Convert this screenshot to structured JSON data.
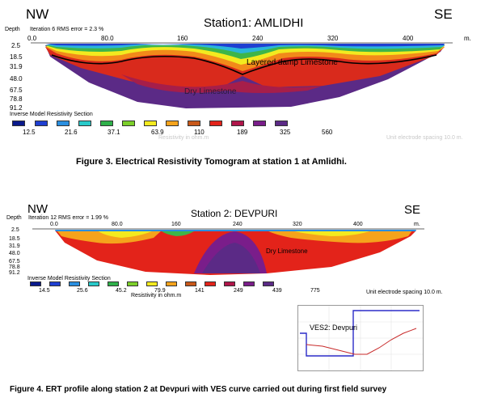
{
  "figure3": {
    "nw": "NW",
    "se": "SE",
    "title": "Station1: AMLIDHI",
    "depth_label": "Depth",
    "iteration": "Iteration 6 RMS error = 2.3 %",
    "x_ticks": [
      "0.0",
      "80.0",
      "160",
      "240",
      "320",
      "400"
    ],
    "unit": "m.",
    "depths": [
      "2.5",
      "18.5",
      "31.9",
      "48.0",
      "67.5",
      "78.8",
      "91.2"
    ],
    "label_layer": "Layered damp Limestone",
    "label_dry": "Dry Limestone",
    "legend_title": "Inverse Model Resistivity Section",
    "legend_values": [
      "12.5",
      "21.6",
      "37.1",
      "63.9",
      "110",
      "189",
      "325",
      "560"
    ],
    "faded_resistivity": "Resistivity in ohm.m",
    "faded_spacing": "Unit electrode spacing 10.0 m.",
    "caption": "Figure 3. Electrical Resistivity Tomogram at station 1 at Amlidhi."
  },
  "figure4": {
    "nw": "NW",
    "se": "SE",
    "title": "Station 2: DEVPURI",
    "depth_label": "Depth",
    "iteration": "Iteration 12 RMS error = 1.99 %",
    "x_ticks": [
      "0.0",
      "80.0",
      "160",
      "240",
      "320",
      "400"
    ],
    "unit": "m.",
    "depths": [
      "2.5",
      "18.5",
      "31.9",
      "48.0",
      "67.5",
      "78.8",
      "91.2"
    ],
    "label_dry": "Dry Limestone",
    "legend_title": "Inverse Model Resistivity Section",
    "legend_values": [
      "14.5",
      "25.6",
      "45.2",
      "79.9",
      "141",
      "249",
      "439",
      "775"
    ],
    "resistivity": "Resistivity in ohm.m",
    "spacing": "Unit electrode spacing 10.0 m.",
    "ves_label": "VES2: Devpuri",
    "caption": "Figure 4. ERT profile along station 2 at Devpuri with VES curve carried out during first field survey"
  },
  "colors": {
    "scale": [
      "#0a1a8c",
      "#1f3fd1",
      "#2a8fe0",
      "#29c9c9",
      "#2fb04a",
      "#7ccf2a",
      "#f3ea1f",
      "#f5a31c",
      "#c8581a",
      "#e3231a",
      "#b0154a",
      "#7a1d8a",
      "#5b2a86"
    ]
  }
}
